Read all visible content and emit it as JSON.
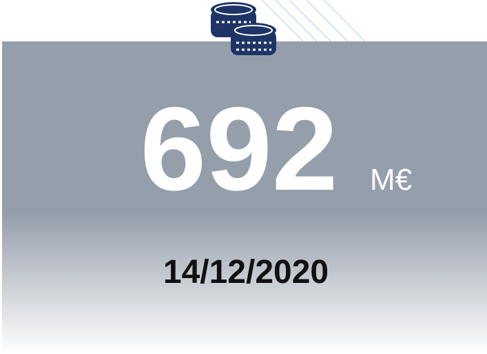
{
  "amount": {
    "value": 692,
    "unit": "M€"
  },
  "date": "14/12/2020"
}
